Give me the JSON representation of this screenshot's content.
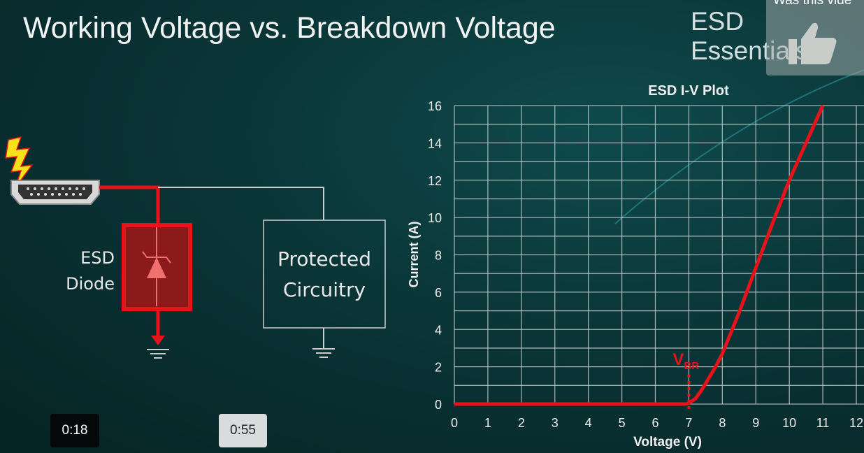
{
  "slide": {
    "title": "Working Voltage vs. Breakdown Voltage",
    "brand": "ESD Essentials",
    "diode_label_line1": "ESD",
    "diode_label_line2": "Diode",
    "protected_line1": "Protected",
    "protected_line2": "Circuitry",
    "colors": {
      "accent": "#e8121a",
      "background": "#0a3537",
      "grid": "#c8cccc"
    }
  },
  "video": {
    "feedback_prompt": "Was this vide",
    "feedback_icon": "thumbs-up-icon",
    "timestamp_left": "0:18",
    "timestamp_right": "0:55"
  },
  "chart_data": {
    "type": "line",
    "title": "ESD I-V Plot",
    "xlabel": "Voltage (V)",
    "ylabel": "Current (A)",
    "xlim": [
      0,
      12
    ],
    "ylim": [
      0,
      16
    ],
    "xticks": [
      "0",
      "1",
      "2",
      "3",
      "4",
      "5",
      "6",
      "7",
      "8",
      "9",
      "10",
      "11",
      "12"
    ],
    "yticks": [
      "0",
      "2",
      "4",
      "6",
      "8",
      "10",
      "12",
      "14",
      "16"
    ],
    "grid": true,
    "series": [
      {
        "color": "#e8121a",
        "x": [
          0,
          6.9,
          7.0,
          7.2,
          7.4,
          7.6,
          7.8,
          8.0,
          8.5,
          9.0,
          9.5,
          10.0,
          10.5,
          11.0
        ],
        "y": [
          0,
          0,
          0.05,
          0.3,
          0.8,
          1.4,
          2.0,
          2.7,
          4.9,
          7.3,
          9.7,
          12.0,
          14.0,
          16.0
        ]
      }
    ],
    "annotations": [
      {
        "text": "V",
        "subscript": "BR",
        "x": 7
      }
    ]
  }
}
